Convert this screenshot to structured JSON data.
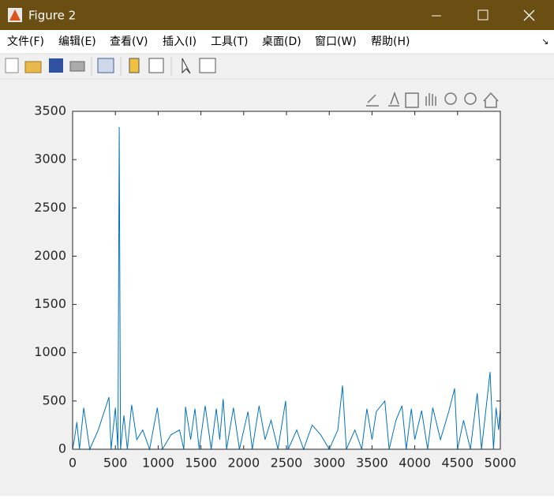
{
  "window": {
    "title": "Figure 2"
  },
  "menu": [
    "文件(F)",
    "编辑(E)",
    "查看(V)",
    "插入(I)",
    "工具(T)",
    "桌面(D)",
    "窗口(W)",
    "帮助(H)"
  ],
  "chart_data": {
    "type": "line",
    "x": [
      0,
      20,
      50,
      80,
      130,
      200,
      300,
      425,
      450,
      500,
      530,
      545,
      560,
      600,
      640,
      690,
      750,
      820,
      900,
      990,
      1050,
      1150,
      1250,
      1300,
      1320,
      1380,
      1430,
      1480,
      1550,
      1620,
      1680,
      1720,
      1760,
      1800,
      1880,
      1950,
      2050,
      2100,
      2180,
      2250,
      2320,
      2400,
      2490,
      2520,
      2620,
      2700,
      2800,
      2900,
      3000,
      3100,
      3155,
      3200,
      3300,
      3380,
      3440,
      3500,
      3550,
      3650,
      3700,
      3780,
      3850,
      3900,
      3960,
      4000,
      4080,
      4150,
      4210,
      4300,
      4400,
      4465,
      4500,
      4570,
      4650,
      4730,
      4780,
      4880,
      4920,
      4950,
      4980,
      5000
    ],
    "series": [
      {
        "color": "#0072bd",
        "values": [
          0,
          100,
          280,
          0,
          430,
          0,
          200,
          540,
          0,
          430,
          0,
          3336,
          0,
          350,
          0,
          460,
          100,
          200,
          0,
          430,
          0,
          150,
          200,
          0,
          440,
          100,
          420,
          0,
          450,
          0,
          420,
          100,
          520,
          0,
          430,
          0,
          390,
          0,
          450,
          100,
          300,
          0,
          500,
          0,
          200,
          0,
          250,
          150,
          0,
          200,
          660,
          0,
          200,
          0,
          420,
          100,
          390,
          500,
          0,
          300,
          450,
          0,
          420,
          100,
          400,
          0,
          430,
          100,
          400,
          630,
          0,
          300,
          0,
          580,
          0,
          800,
          0,
          430,
          200,
          420
        ]
      }
    ],
    "xlim": [
      0,
      5000
    ],
    "xticks": [
      0,
      500,
      1000,
      1500,
      2000,
      2500,
      3000,
      3500,
      4000,
      4500,
      5000
    ],
    "ylim": [
      0,
      3500
    ],
    "yticks": [
      0,
      500,
      1000,
      1500,
      2000,
      2500,
      3000,
      3500
    ]
  }
}
